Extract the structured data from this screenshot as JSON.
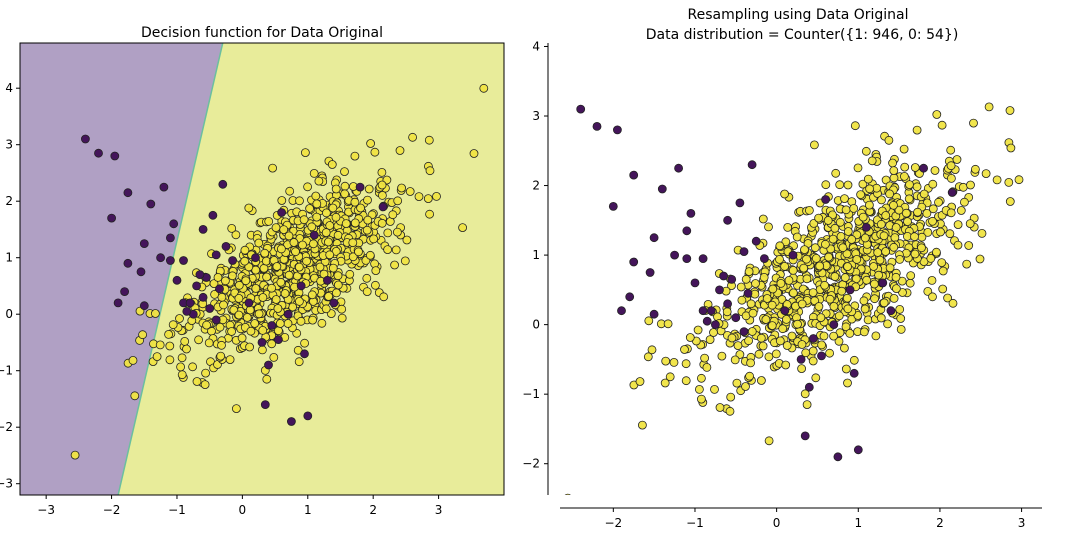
{
  "colors": {
    "majority": "#f0e442",
    "minority": "#44155a",
    "majority_region": "#e8ec9a",
    "minority_region": "#b0a0c4",
    "boundary": "#6bbf9f",
    "point_edge": "#222222"
  },
  "chart_data": [
    {
      "type": "scatter",
      "title": "Decision function for Data Original",
      "xlim": [
        -3.4,
        4.0
      ],
      "ylim": [
        -3.2,
        4.8
      ],
      "xticks": [
        -3,
        -2,
        -1,
        0,
        1,
        2,
        3
      ],
      "yticks": [
        -3,
        -2,
        -1,
        0,
        1,
        2,
        3,
        4
      ],
      "grid": false,
      "decision_boundary": {
        "points": [
          [
            -1.9,
            -3.2
          ],
          [
            -0.3,
            4.8
          ]
        ],
        "left_class": "0",
        "right_class": "1"
      },
      "series": [
        {
          "class": "0",
          "count": 54
        },
        {
          "class": "1",
          "count": 946
        }
      ]
    },
    {
      "type": "scatter",
      "title": "Resampling using Data Original",
      "subtitle": "Data distribution = Counter({1: 946, 0: 54})",
      "xlim": [
        -2.8,
        3.25
      ],
      "ylim": [
        -2.45,
        4.05
      ],
      "xticks": [
        -2,
        -1,
        0,
        1,
        2,
        3
      ],
      "yticks": [
        -2,
        -1,
        0,
        1,
        2,
        3,
        4
      ],
      "grid": false,
      "series": [
        {
          "class": "0",
          "count": 54
        },
        {
          "class": "1",
          "count": 946
        }
      ]
    }
  ],
  "points": {
    "minority": [
      [
        -2.4,
        3.1
      ],
      [
        -2.2,
        2.85
      ],
      [
        -1.95,
        2.8
      ],
      [
        -1.75,
        2.15
      ],
      [
        -1.2,
        2.25
      ],
      [
        -1.05,
        1.6
      ],
      [
        -2.0,
        1.7
      ],
      [
        -1.4,
        1.95
      ],
      [
        -1.1,
        1.35
      ],
      [
        -1.5,
        1.25
      ],
      [
        -1.75,
        0.9
      ],
      [
        -1.55,
        0.75
      ],
      [
        -1.25,
        1.0
      ],
      [
        -1.1,
        0.95
      ],
      [
        -0.9,
        0.95
      ],
      [
        -1.8,
        0.4
      ],
      [
        -1.9,
        0.2
      ],
      [
        -1.5,
        0.15
      ],
      [
        -0.55,
        0.65
      ],
      [
        -0.4,
        1.05
      ],
      [
        -0.3,
        2.3
      ],
      [
        -0.45,
        1.75
      ],
      [
        -0.7,
        0.5
      ],
      [
        -0.6,
        0.3
      ],
      [
        -0.5,
        0.1
      ],
      [
        -0.75,
        0.0
      ],
      [
        -0.9,
        0.2
      ],
      [
        -0.35,
        0.45
      ],
      [
        -0.25,
        1.2
      ],
      [
        -0.6,
        1.5
      ],
      [
        0.1,
        0.2
      ],
      [
        0.3,
        -0.5
      ],
      [
        0.45,
        -0.2
      ],
      [
        0.6,
        1.8
      ],
      [
        0.9,
        0.5
      ],
      [
        1.3,
        0.6
      ],
      [
        0.35,
        -1.6
      ],
      [
        0.75,
        -1.9
      ],
      [
        1.0,
        -1.8
      ],
      [
        0.55,
        -0.45
      ],
      [
        -0.4,
        -0.1
      ],
      [
        -0.8,
        0.2
      ],
      [
        1.8,
        2.25
      ],
      [
        2.15,
        1.9
      ],
      [
        1.1,
        1.4
      ],
      [
        0.2,
        1.0
      ],
      [
        -0.15,
        0.95
      ],
      [
        -1.0,
        0.6
      ],
      [
        0.95,
        -0.7
      ],
      [
        0.4,
        -0.9
      ],
      [
        0.7,
        0.0
      ],
      [
        1.4,
        0.2
      ],
      [
        -0.85,
        0.05
      ],
      [
        -0.65,
        0.7
      ]
    ],
    "majority_count": 946,
    "majority_seed": 20240513
  }
}
